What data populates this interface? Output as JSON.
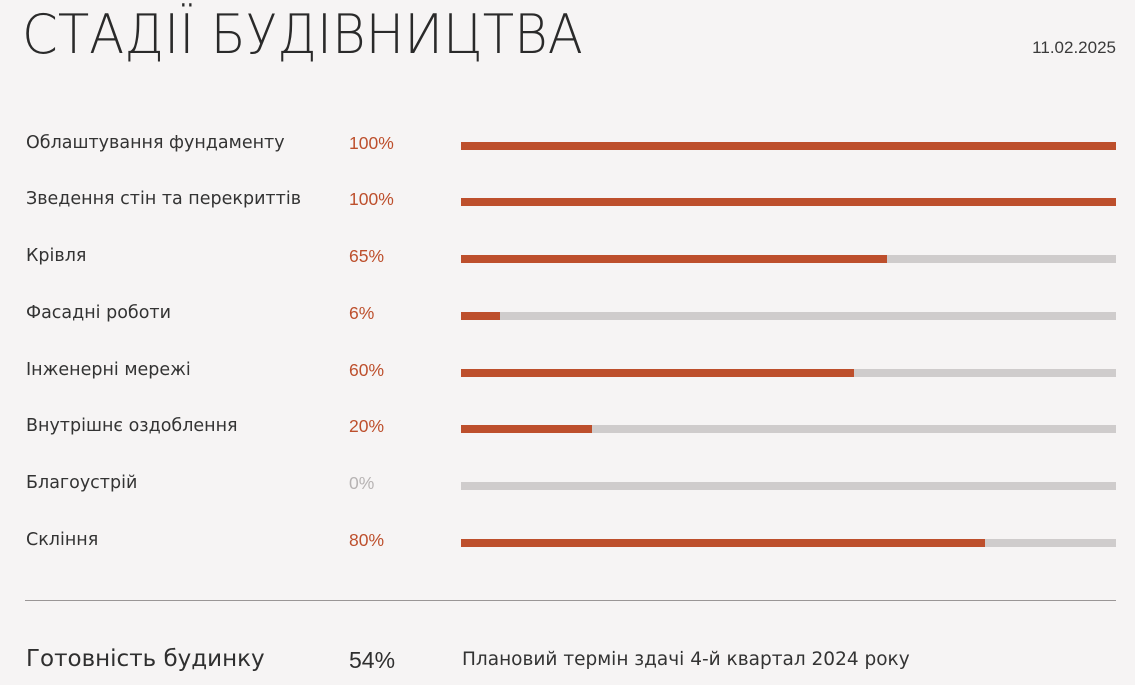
{
  "header": {
    "title": "СТАДІЇ БУДІВНИЦТВА",
    "date": "11.02.2025"
  },
  "colors": {
    "accent": "#bd4f2c",
    "track": "#cfcccc",
    "muted": "#b7b3b3",
    "background": "#f6f4f4"
  },
  "stages": [
    {
      "name": "Облаштування фундаменту",
      "percent_label": "100%",
      "progress": 100
    },
    {
      "name": "Зведення стін та перекриттів",
      "percent_label": "100%",
      "progress": 100
    },
    {
      "name": "Крівля",
      "percent_label": "65%",
      "progress": 65
    },
    {
      "name": "Фасадні роботи",
      "percent_label": "6%",
      "progress": 6
    },
    {
      "name": "Інженерні мережі",
      "percent_label": "60%",
      "progress": 60
    },
    {
      "name": "Внутрішнє оздоблення",
      "percent_label": "20%",
      "progress": 20
    },
    {
      "name": "Благоустрій",
      "percent_label": "0%",
      "progress": 0
    },
    {
      "name": "Скління",
      "percent_label": "80%",
      "progress": 80
    }
  ],
  "summary": {
    "label": "Готовність будинку",
    "percent": "54%",
    "note": "Плановий термін здачі 4-й квартал 2024 року"
  }
}
